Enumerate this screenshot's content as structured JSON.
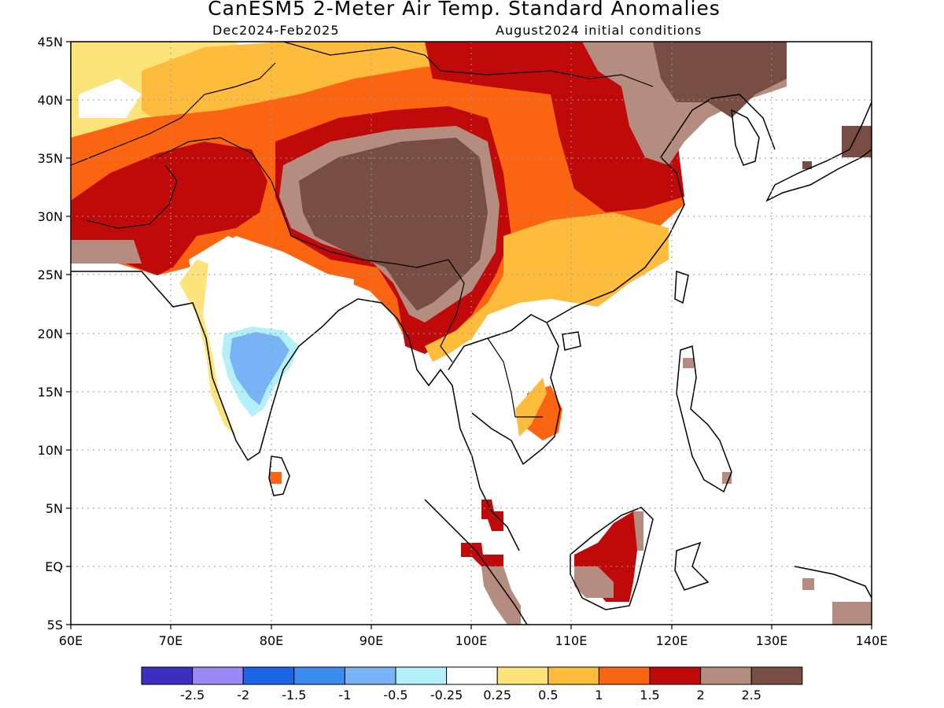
{
  "title": "CanESM5 2-Meter Air Temp. Standard Anomalies",
  "subtitle_left": "Dec2024-Feb2025",
  "subtitle_right": "August2024 initial conditions",
  "map": {
    "lat_labels": [
      "45N",
      "40N",
      "35N",
      "30N",
      "25N",
      "20N",
      "15N",
      "10N",
      "5N",
      "EQ",
      "5S"
    ],
    "lon_labels": [
      "60E",
      "70E",
      "80E",
      "90E",
      "100E",
      "110E",
      "120E",
      "130E",
      "140E"
    ]
  },
  "colorbar": {
    "colors": [
      "#3c2fbf",
      "#9c87f5",
      "#1e64e6",
      "#3c8cf0",
      "#78b4f5",
      "#b4f0fa",
      "#ffffff",
      "#fde47a",
      "#fdbc3c",
      "#fb6410",
      "#c00a0a",
      "#b48c80",
      "#784e44"
    ],
    "labels": [
      "-2.5",
      "-2",
      "-1.5",
      "-1",
      "-0.5",
      "-0.25",
      "0.25",
      "0.5",
      "1",
      "1.5",
      "2",
      "2.5"
    ]
  },
  "anomaly_colors": {
    "light_yellow": "#fde47a",
    "yellow_orange": "#fdbc3c",
    "orange": "#fb6410",
    "red": "#c00a0a",
    "light_brown": "#b48c80",
    "dark_brown": "#784e44",
    "light_blue": "#78b4f5",
    "cyan": "#b4f0fa"
  }
}
